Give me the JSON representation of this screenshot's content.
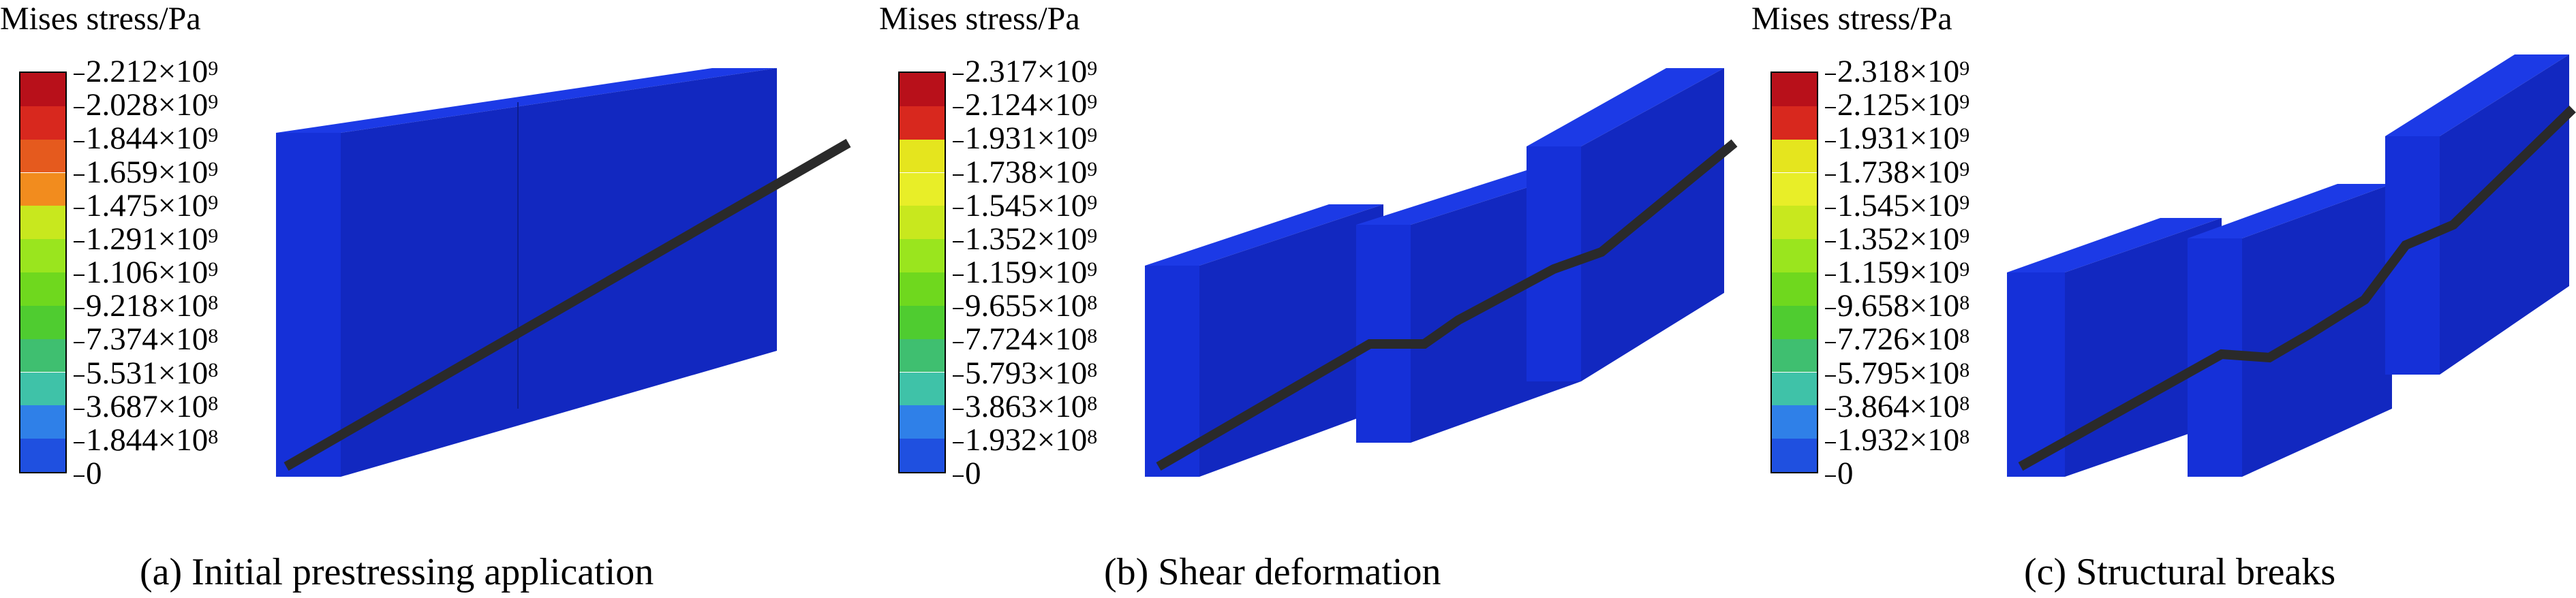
{
  "panels": [
    {
      "legend_title": "Mises stress/Pa",
      "caption": "(a) Initial prestressing application",
      "ticks": [
        "2.212×10^9",
        "2.028×10^9",
        "1.844×10^9",
        "1.659×10^9",
        "1.475×10^9",
        "1.291×10^9",
        "1.106×10^9",
        "9.218×10^8",
        "7.374×10^8",
        "5.531×10^8",
        "3.687×10^8",
        "1.844×10^8",
        "0"
      ],
      "segment_colors": [
        "#b8101a",
        "#d8281e",
        "#e55a1e",
        "#f28c1e",
        "#c8e81e",
        "#9ae51e",
        "#6fd81e",
        "#4fcc30",
        "#3fbf70",
        "#3fc2a8",
        "#2f80e8",
        "#1f50e0"
      ]
    },
    {
      "legend_title": "Mises stress/Pa",
      "caption": "(b) Shear deformation",
      "ticks": [
        "2.317×10^9",
        "2.124×10^9",
        "1.931×10^9",
        "1.738×10^9",
        "1.545×10^9",
        "1.352×10^9",
        "1.159×10^9",
        "9.655×10^8",
        "7.724×10^8",
        "5.793×10^8",
        "3.863×10^8",
        "1.932×10^8",
        "0"
      ],
      "segment_colors": [
        "#b8101a",
        "#d8281e",
        "#e5e51e",
        "#e8ee28",
        "#c8e81e",
        "#9ae51e",
        "#6fd81e",
        "#4fcc30",
        "#3fbf70",
        "#3fc2a8",
        "#2f80e8",
        "#1f50e0"
      ]
    },
    {
      "legend_title": "Mises stress/Pa",
      "caption": "(c) Structural breaks",
      "ticks": [
        "2.318×10^9",
        "2.125×10^9",
        "1.931×10^9",
        "1.738×10^9",
        "1.545×10^9",
        "1.352×10^9",
        "1.159×10^9",
        "9.658×10^8",
        "7.726×10^8",
        "5.795×10^8",
        "3.864×10^8",
        "1.932×10^8",
        "0"
      ],
      "segment_colors": [
        "#b8101a",
        "#d8281e",
        "#e5e51e",
        "#e8ee28",
        "#c8e81e",
        "#9ae51e",
        "#6fd81e",
        "#4fcc30",
        "#3fbf70",
        "#3fc2a8",
        "#2f80e8",
        "#1f50e0"
      ]
    }
  ],
  "colors": {
    "block_front": "#1530d8",
    "block_top": "#1c3ae6",
    "block_side": "#0f24a8",
    "tendon": "#2a2a2a"
  }
}
